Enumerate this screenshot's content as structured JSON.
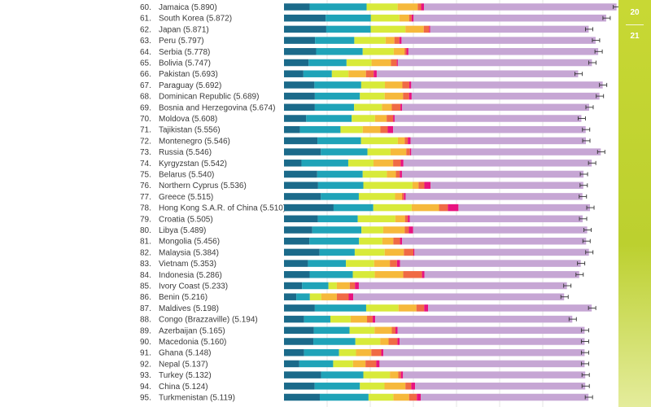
{
  "page_numbers": [
    "20",
    "21"
  ],
  "chart_data": {
    "type": "bar",
    "stacked": true,
    "orientation": "horizontal",
    "error_bars": true,
    "rows": [
      {
        "rank": "60.",
        "name": "Jamaica (5.890)",
        "score": 5.89,
        "segments": [
          1.19,
          2.64,
          1.44,
          0.93,
          0.16,
          0.13,
          8.93
        ]
      },
      {
        "rank": "61.",
        "name": "South Korea (5.872)",
        "score": 5.872,
        "segments": [
          1.93,
          2.1,
          1.32,
          0.45,
          0.12,
          0.09,
          8.93
        ]
      },
      {
        "rank": "62.",
        "name": "Japan (5.871)",
        "score": 5.871,
        "segments": [
          1.96,
          2.06,
          1.61,
          0.85,
          0.25,
          0.05,
          7.35
        ]
      },
      {
        "rank": "63.",
        "name": "Peru (5.797)",
        "score": 5.797,
        "segments": [
          1.44,
          1.82,
          1.45,
          0.41,
          0.23,
          0.1,
          9.0
        ]
      },
      {
        "rank": "64.",
        "name": "Serbia (5.778)",
        "score": 5.778,
        "segments": [
          1.49,
          2.16,
          1.44,
          0.5,
          0.09,
          0.09,
          8.8
        ]
      },
      {
        "rank": "65.",
        "name": "Bolivia (5.747)",
        "score": 5.747,
        "segments": [
          1.14,
          1.76,
          1.16,
          0.9,
          0.27,
          0.05,
          9.0
        ]
      },
      {
        "rank": "66.",
        "name": "Pakistan (5.693)",
        "score": 5.693,
        "segments": [
          0.9,
          1.32,
          0.77,
          0.81,
          0.36,
          0.14,
          9.34
        ]
      },
      {
        "rank": "67.",
        "name": "Paraguay (5.692)",
        "score": 5.692,
        "segments": [
          1.41,
          2.17,
          1.1,
          0.81,
          0.32,
          0.09,
          8.88
        ]
      },
      {
        "rank": "68.",
        "name": "Dominican Republic (5.689)",
        "score": 5.689,
        "segments": [
          1.43,
          2.09,
          1.15,
          0.85,
          0.28,
          0.12,
          8.71
        ]
      },
      {
        "rank": "69.",
        "name": "Bosnia and Herzegovina (5.674)",
        "score": 5.674,
        "segments": [
          1.43,
          1.82,
          1.29,
          0.46,
          0.4,
          0.08,
          8.67
        ]
      },
      {
        "rank": "70.",
        "name": "Moldova (5.608)",
        "score": 5.608,
        "segments": [
          1.03,
          2.11,
          1.08,
          0.54,
          0.3,
          0.07,
          8.66
        ]
      },
      {
        "rank": "71.",
        "name": "Tajikistan (5.556)",
        "score": 5.556,
        "segments": [
          0.74,
          1.88,
          1.03,
          0.82,
          0.34,
          0.25,
          8.93
        ]
      },
      {
        "rank": "72.",
        "name": "Montenegro (5.546)",
        "score": 5.546,
        "segments": [
          1.55,
          2.02,
          1.71,
          0.32,
          0.14,
          0.13,
          8.13
        ]
      },
      {
        "rank": "73.",
        "name": "Russia (5.546)",
        "score": 5.546,
        "segments": [
          1.71,
          2.16,
          1.07,
          0.73,
          0.17,
          0.06,
          8.79
        ]
      },
      {
        "rank": "74.",
        "name": "Kyrgyzstan (5.542)",
        "score": 5.542,
        "segments": [
          0.81,
          2.17,
          1.17,
          0.91,
          0.35,
          0.13,
          8.73
        ]
      },
      {
        "rank": "75.",
        "name": "Belarus (5.540)",
        "score": 5.54,
        "segments": [
          1.54,
          2.11,
          1.12,
          0.42,
          0.18,
          0.1,
          8.42
        ]
      },
      {
        "rank": "76.",
        "name": "Northern Cyprus (5.536)",
        "score": 5.536,
        "segments": [
          1.58,
          2.1,
          2.28,
          0.28,
          0.27,
          0.29,
          7.08
        ]
      },
      {
        "rank": "77.",
        "name": "Greece (5.515)",
        "score": 5.515,
        "segments": [
          1.71,
          1.76,
          1.68,
          0.32,
          0.09,
          0.08,
          8.2
        ]
      },
      {
        "rank": "78.",
        "name": "Hong Kong S.A.R. of China (5.510)",
        "score": 5.51,
        "segments": [
          2.3,
          1.84,
          1.78,
          1.27,
          0.41,
          0.49,
          6.1
        ]
      },
      {
        "rank": "79.",
        "name": "Croatia (5.505)",
        "score": 5.505,
        "segments": [
          1.57,
          1.85,
          1.74,
          0.45,
          0.13,
          0.09,
          8.02
        ]
      },
      {
        "rank": "80.",
        "name": "Libya (5.489)",
        "score": 5.489,
        "segments": [
          1.31,
          2.28,
          1.01,
          1.0,
          0.19,
          0.2,
          8.07
        ]
      },
      {
        "rank": "81.",
        "name": "Mongolia (5.456)",
        "score": 5.456,
        "segments": [
          1.18,
          2.3,
          1.08,
          0.51,
          0.31,
          0.1,
          8.53
        ]
      },
      {
        "rank": "82.",
        "name": "Malaysia (5.384)",
        "score": 5.384,
        "segments": [
          1.65,
          1.63,
          1.39,
          0.89,
          0.44,
          0.05,
          8.09
        ]
      },
      {
        "rank": "83.",
        "name": "Vietnam (5.353)",
        "score": 5.353,
        "segments": [
          1.11,
          1.76,
          1.31,
          0.73,
          0.33,
          0.14,
          8.38
        ]
      },
      {
        "rank": "84.",
        "name": "Indonesia (5.286)",
        "score": 5.286,
        "segments": [
          1.19,
          2.0,
          1.02,
          1.32,
          0.87,
          0.11,
          7.18
        ]
      },
      {
        "rank": "85.",
        "name": "Ivory Coast (5.233)",
        "score": 5.233,
        "segments": [
          0.84,
          1.22,
          0.39,
          0.6,
          0.24,
          0.18,
          9.65
        ]
      },
      {
        "rank": "86.",
        "name": "Benin (5.216)",
        "score": 5.216,
        "segments": [
          0.57,
          0.63,
          0.53,
          0.72,
          0.55,
          0.21,
          9.78
        ]
      },
      {
        "rank": "87.",
        "name": "Maldives (5.198)",
        "score": 5.198,
        "segments": [
          1.43,
          2.38,
          1.5,
          0.83,
          0.36,
          0.18,
          7.59
        ]
      },
      {
        "rank": "88.",
        "name": "Congo (Brazzaville) (5.194)",
        "score": 5.194,
        "segments": [
          0.93,
          1.22,
          0.94,
          0.76,
          0.26,
          0.12,
          9.14
        ]
      },
      {
        "rank": "89.",
        "name": "Azerbaijan (5.165)",
        "score": 5.165,
        "segments": [
          1.38,
          1.66,
          1.16,
          0.8,
          0.17,
          0.1,
          8.67
        ]
      },
      {
        "rank": "90.",
        "name": "Macedonia (5.160)",
        "score": 5.16,
        "segments": [
          1.36,
          1.95,
          1.15,
          0.39,
          0.41,
          0.1,
          8.58
        ]
      },
      {
        "rank": "91.",
        "name": "Ghana (5.148)",
        "score": 5.148,
        "segments": [
          0.93,
          1.62,
          0.79,
          0.71,
          0.46,
          0.1,
          9.33
        ]
      },
      {
        "rank": "92.",
        "name": "Nepal (5.137)",
        "score": 5.137,
        "segments": [
          0.71,
          1.57,
          0.92,
          0.58,
          0.5,
          0.15,
          9.51
        ]
      },
      {
        "rank": "93.",
        "name": "Turkey (5.132)",
        "score": 5.132,
        "segments": [
          1.72,
          1.96,
          1.23,
          0.39,
          0.12,
          0.1,
          8.45
        ]
      },
      {
        "rank": "94.",
        "name": "China (5.124)",
        "score": 5.124,
        "segments": [
          1.42,
          2.1,
          1.14,
          0.97,
          0.27,
          0.18,
          7.89
        ]
      },
      {
        "rank": "95.",
        "name": "Turkmenistan (5.119)",
        "score": 5.119,
        "segments": [
          1.66,
          2.26,
          1.15,
          0.73,
          0.36,
          0.18,
          7.78
        ]
      }
    ],
    "series": [
      {
        "name": "segment-1",
        "color": "#1b6a8a"
      },
      {
        "name": "segment-2",
        "color": "#1fa3b8"
      },
      {
        "name": "segment-3",
        "color": "#d8ea3a"
      },
      {
        "name": "segment-4",
        "color": "#f6b93b"
      },
      {
        "name": "segment-5",
        "color": "#f06a45"
      },
      {
        "name": "segment-6",
        "color": "#e8127f"
      },
      {
        "name": "segment-7",
        "color": "#c6a6d4"
      }
    ],
    "xlim": [
      0,
      14
    ],
    "gridlines": [
      2,
      4,
      6,
      8,
      10,
      12
    ]
  }
}
